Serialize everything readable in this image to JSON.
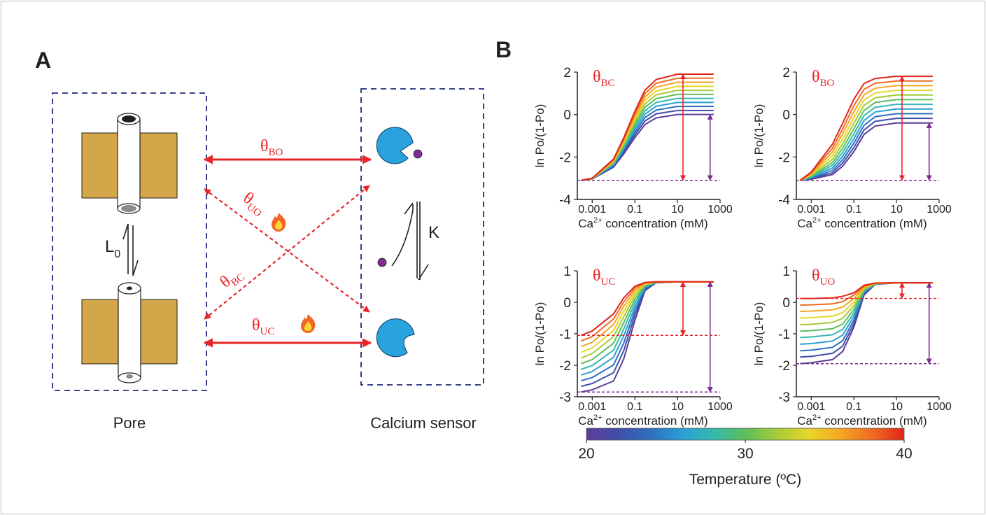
{
  "panel_a": {
    "label": "A",
    "pore": "Pore",
    "sensor": "Calcium sensor",
    "l0": {
      "main": "L",
      "sub": "0"
    },
    "k": "K",
    "theta_bo": {
      "main": "θ",
      "sub": "BO"
    },
    "theta_uo": {
      "main": "θ",
      "sub": "UO"
    },
    "theta_bc": {
      "main": "θ",
      "sub": "BC"
    },
    "theta_uc": {
      "main": "θ",
      "sub": "UC"
    }
  },
  "panel_b_label": "B",
  "colorbar": {
    "lim": [
      20,
      40
    ],
    "ticks": [
      20,
      30,
      40
    ],
    "label": "Temperature (ºC)",
    "colors": [
      "#5e3c99",
      "#3f4fa8",
      "#2f6fbf",
      "#2a9fd6",
      "#36b8b0",
      "#5cbf5a",
      "#a6cc3a",
      "#e8d62a",
      "#f5a623",
      "#ef6b23",
      "#e2231a"
    ]
  },
  "chart_data": [
    {
      "type": "line",
      "title": {
        "main": "θ",
        "sub": "BC"
      },
      "y_label": "ln Po/(1-Po)",
      "x_label": {
        "pre": "Ca",
        "sup": "2+",
        "post": " concentration (mM)"
      },
      "log_x": true,
      "x": [
        0.0003,
        0.001,
        0.01,
        0.03,
        0.1,
        0.3,
        1,
        10,
        500
      ],
      "xlim": [
        0.0002,
        1000
      ],
      "xticks": [
        0.001,
        0.1,
        10,
        1000
      ],
      "ylim": [
        -4,
        2
      ],
      "yticks": [
        -4,
        -2,
        0,
        2
      ],
      "series": [
        {
          "color": "#5e3c99",
          "values": [
            -3.1,
            -3.04,
            -2.48,
            -1.86,
            -1.09,
            -0.47,
            -0.16,
            0,
            0
          ]
        },
        {
          "color": "#3f4fa8",
          "values": [
            -3.1,
            -3.03,
            -2.44,
            -1.78,
            -0.96,
            -0.3,
            0.03,
            0.19,
            0.19
          ]
        },
        {
          "color": "#2f6fbf",
          "values": [
            -3.1,
            -3.03,
            -2.4,
            -1.71,
            -0.84,
            -0.14,
            0.21,
            0.38,
            0.38
          ]
        },
        {
          "color": "#2a9fd6",
          "values": [
            -3.1,
            -3.03,
            -2.37,
            -1.63,
            -0.71,
            0.02,
            0.39,
            0.57,
            0.57
          ]
        },
        {
          "color": "#36b8b0",
          "values": [
            -3.1,
            -3.02,
            -2.33,
            -1.56,
            -0.59,
            0.18,
            0.57,
            0.76,
            0.76
          ]
        },
        {
          "color": "#5cbf5a",
          "values": [
            -3.1,
            -3.02,
            -2.29,
            -1.48,
            -0.47,
            0.34,
            0.75,
            0.95,
            0.95
          ]
        },
        {
          "color": "#a6cc3a",
          "values": [
            -3.1,
            -3.02,
            -2.25,
            -1.4,
            -0.34,
            0.5,
            0.93,
            1.14,
            1.14
          ]
        },
        {
          "color": "#e8d62a",
          "values": [
            -3.1,
            -3.01,
            -2.21,
            -1.33,
            -0.22,
            0.67,
            1.11,
            1.33,
            1.33
          ]
        },
        {
          "color": "#f5a623",
          "values": [
            -3.1,
            -3.01,
            -2.18,
            -1.25,
            -0.1,
            0.83,
            1.29,
            1.52,
            1.52
          ]
        },
        {
          "color": "#ef6b23",
          "values": [
            -3.1,
            -3.0,
            -2.14,
            -1.18,
            0.03,
            0.99,
            1.47,
            1.71,
            1.71
          ]
        },
        {
          "color": "#e2231a",
          "values": [
            -3.1,
            -3.0,
            -2.1,
            -1.1,
            0.15,
            1.15,
            1.65,
            1.9,
            1.9
          ]
        }
      ]
    },
    {
      "type": "line",
      "title": {
        "main": "θ",
        "sub": "BO"
      },
      "y_label": "ln Po/(1-Po)",
      "x_label": {
        "pre": "Ca",
        "sup": "2+",
        "post": " concentration (mM)"
      },
      "log_x": true,
      "x": [
        0.0003,
        0.001,
        0.01,
        0.03,
        0.1,
        0.3,
        1,
        10,
        500
      ],
      "xlim": [
        0.0002,
        1000
      ],
      "xticks": [
        0.001,
        0.1,
        10,
        1000
      ],
      "ylim": [
        -4,
        2
      ],
      "yticks": [
        -4,
        -2,
        0,
        2
      ],
      "series": [
        {
          "color": "#5e3c99",
          "values": [
            -3.1,
            -3.05,
            -2.83,
            -2.43,
            -1.75,
            -0.94,
            -0.54,
            -0.4,
            -0.4
          ]
        },
        {
          "color": "#3f4fa8",
          "values": [
            -3.1,
            -3.02,
            -2.74,
            -2.28,
            -1.56,
            -0.73,
            -0.32,
            -0.18,
            -0.18
          ]
        },
        {
          "color": "#2f6fbf",
          "values": [
            -3.1,
            -3.0,
            -2.63,
            -2.13,
            -1.35,
            -0.51,
            -0.1,
            0.04,
            0.04
          ]
        },
        {
          "color": "#2a9fd6",
          "values": [
            -3.1,
            -2.97,
            -2.51,
            -1.96,
            -1.14,
            -0.28,
            0.12,
            0.26,
            0.26
          ]
        },
        {
          "color": "#36b8b0",
          "values": [
            -3.1,
            -2.94,
            -2.38,
            -1.78,
            -0.91,
            -0.05,
            0.34,
            0.48,
            0.48
          ]
        },
        {
          "color": "#5cbf5a",
          "values": [
            -3.1,
            -2.91,
            -2.25,
            -1.58,
            -0.67,
            0.19,
            0.57,
            0.7,
            0.7
          ]
        },
        {
          "color": "#a6cc3a",
          "values": [
            -3.1,
            -2.87,
            -2.1,
            -1.37,
            -0.41,
            0.43,
            0.79,
            0.92,
            0.92
          ]
        },
        {
          "color": "#e8d62a",
          "values": [
            -3.1,
            -2.84,
            -1.93,
            -1.15,
            -0.15,
            0.68,
            1.02,
            1.14,
            1.14
          ]
        },
        {
          "color": "#f5a623",
          "values": [
            -3.1,
            -2.8,
            -1.76,
            -0.91,
            0.13,
            0.93,
            1.24,
            1.36,
            1.36
          ]
        },
        {
          "color": "#ef6b23",
          "values": [
            -3.1,
            -2.75,
            -1.58,
            -0.67,
            0.42,
            1.19,
            1.47,
            1.58,
            1.58
          ]
        },
        {
          "color": "#e2231a",
          "values": [
            -3.1,
            -2.71,
            -1.39,
            -0.4,
            0.72,
            1.46,
            1.7,
            1.8,
            1.8
          ]
        }
      ]
    },
    {
      "type": "line",
      "title": {
        "main": "θ",
        "sub": "UC"
      },
      "y_label": "ln Po/(1-Po)",
      "x_label": {
        "pre": "Ca",
        "sup": "2+",
        "post": " concentration (mM)"
      },
      "log_x": true,
      "x": [
        0.0003,
        0.001,
        0.01,
        0.03,
        0.1,
        0.3,
        1,
        10,
        500
      ],
      "xlim": [
        0.0002,
        1000
      ],
      "xticks": [
        0.001,
        0.1,
        10,
        1000
      ],
      "ylim": [
        -3,
        1
      ],
      "yticks": [
        -3,
        -2,
        -1,
        0,
        1
      ],
      "series": [
        {
          "color": "#5e3c99",
          "values": [
            -2.85,
            -2.78,
            -2.5,
            -1.8,
            -0.58,
            0.37,
            0.62,
            0.65,
            0.65
          ]
        },
        {
          "color": "#3f4fa8",
          "values": [
            -2.67,
            -2.58,
            -2.24,
            -1.54,
            -0.42,
            0.41,
            0.62,
            0.65,
            0.65
          ]
        },
        {
          "color": "#2f6fbf",
          "values": [
            -2.49,
            -2.39,
            -1.99,
            -1.3,
            -0.28,
            0.44,
            0.63,
            0.65,
            0.65
          ]
        },
        {
          "color": "#2a9fd6",
          "values": [
            -2.31,
            -2.2,
            -1.75,
            -1.07,
            -0.15,
            0.48,
            0.63,
            0.65,
            0.65
          ]
        },
        {
          "color": "#36b8b0",
          "values": [
            -2.13,
            -2.01,
            -1.52,
            -0.85,
            -0.02,
            0.51,
            0.63,
            0.65,
            0.65
          ]
        },
        {
          "color": "#5cbf5a",
          "values": [
            -1.95,
            -1.82,
            -1.3,
            -0.65,
            0.09,
            0.53,
            0.64,
            0.65,
            0.65
          ]
        },
        {
          "color": "#a6cc3a",
          "values": [
            -1.77,
            -1.63,
            -1.09,
            -0.46,
            0.2,
            0.56,
            0.64,
            0.65,
            0.65
          ]
        },
        {
          "color": "#e8d62a",
          "values": [
            -1.59,
            -1.45,
            -0.9,
            -0.29,
            0.29,
            0.58,
            0.64,
            0.65,
            0.65
          ]
        },
        {
          "color": "#f5a623",
          "values": [
            -1.41,
            -1.27,
            -0.71,
            -0.13,
            0.37,
            0.6,
            0.65,
            0.65,
            0.65
          ]
        },
        {
          "color": "#ef6b23",
          "values": [
            -1.23,
            -1.09,
            -0.53,
            0.01,
            0.45,
            0.62,
            0.65,
            0.65,
            0.65
          ]
        },
        {
          "color": "#e2231a",
          "values": [
            -1.05,
            -0.91,
            -0.37,
            0.14,
            0.51,
            0.63,
            0.65,
            0.65,
            0.65
          ]
        }
      ]
    },
    {
      "type": "line",
      "title": {
        "main": "θ",
        "sub": "UO"
      },
      "y_label": "ln Po/(1-Po)",
      "x_label": {
        "pre": "Ca",
        "sup": "2+",
        "post": " concentration (mM)"
      },
      "log_x": true,
      "x": [
        0.0003,
        0.001,
        0.01,
        0.03,
        0.1,
        0.3,
        1,
        10,
        500
      ],
      "xlim": [
        0.0002,
        1000
      ],
      "xticks": [
        0.001,
        0.1,
        10,
        1000
      ],
      "ylim": [
        -3,
        1
      ],
      "yticks": [
        -3,
        -2,
        -1,
        0,
        1
      ],
      "series": [
        {
          "color": "#5e3c99",
          "values": [
            -1.95,
            -1.92,
            -1.82,
            -1.56,
            -0.79,
            0.23,
            0.57,
            0.62,
            0.62
          ]
        },
        {
          "color": "#3f4fa8",
          "values": [
            -1.74,
            -1.72,
            -1.62,
            -1.39,
            -0.68,
            0.27,
            0.57,
            0.62,
            0.62
          ]
        },
        {
          "color": "#2f6fbf",
          "values": [
            -1.54,
            -1.52,
            -1.43,
            -1.22,
            -0.57,
            0.3,
            0.58,
            0.62,
            0.62
          ]
        },
        {
          "color": "#2a9fd6",
          "values": [
            -1.33,
            -1.31,
            -1.23,
            -1.04,
            -0.45,
            0.33,
            0.58,
            0.62,
            0.62
          ]
        },
        {
          "color": "#36b8b0",
          "values": [
            -1.12,
            -1.1,
            -1.03,
            -0.86,
            -0.34,
            0.36,
            0.59,
            0.62,
            0.62
          ]
        },
        {
          "color": "#5cbf5a",
          "values": [
            -0.92,
            -0.9,
            -0.84,
            -0.69,
            -0.23,
            0.39,
            0.59,
            0.62,
            0.62
          ]
        },
        {
          "color": "#a6cc3a",
          "values": [
            -0.71,
            -0.7,
            -0.64,
            -0.51,
            -0.11,
            0.42,
            0.59,
            0.62,
            0.62
          ]
        },
        {
          "color": "#e8d62a",
          "values": [
            -0.5,
            -0.49,
            -0.44,
            -0.33,
            0.0,
            0.45,
            0.6,
            0.62,
            0.62
          ]
        },
        {
          "color": "#f5a623",
          "values": [
            -0.29,
            -0.28,
            -0.24,
            -0.15,
            0.12,
            0.48,
            0.6,
            0.62,
            0.62
          ]
        },
        {
          "color": "#ef6b23",
          "values": [
            -0.09,
            -0.08,
            -0.05,
            0.02,
            0.23,
            0.51,
            0.61,
            0.62,
            0.62
          ]
        },
        {
          "color": "#e2231a",
          "values": [
            0.12,
            0.12,
            0.14,
            0.19,
            0.3,
            0.54,
            0.61,
            0.62,
            0.62
          ]
        }
      ]
    }
  ]
}
